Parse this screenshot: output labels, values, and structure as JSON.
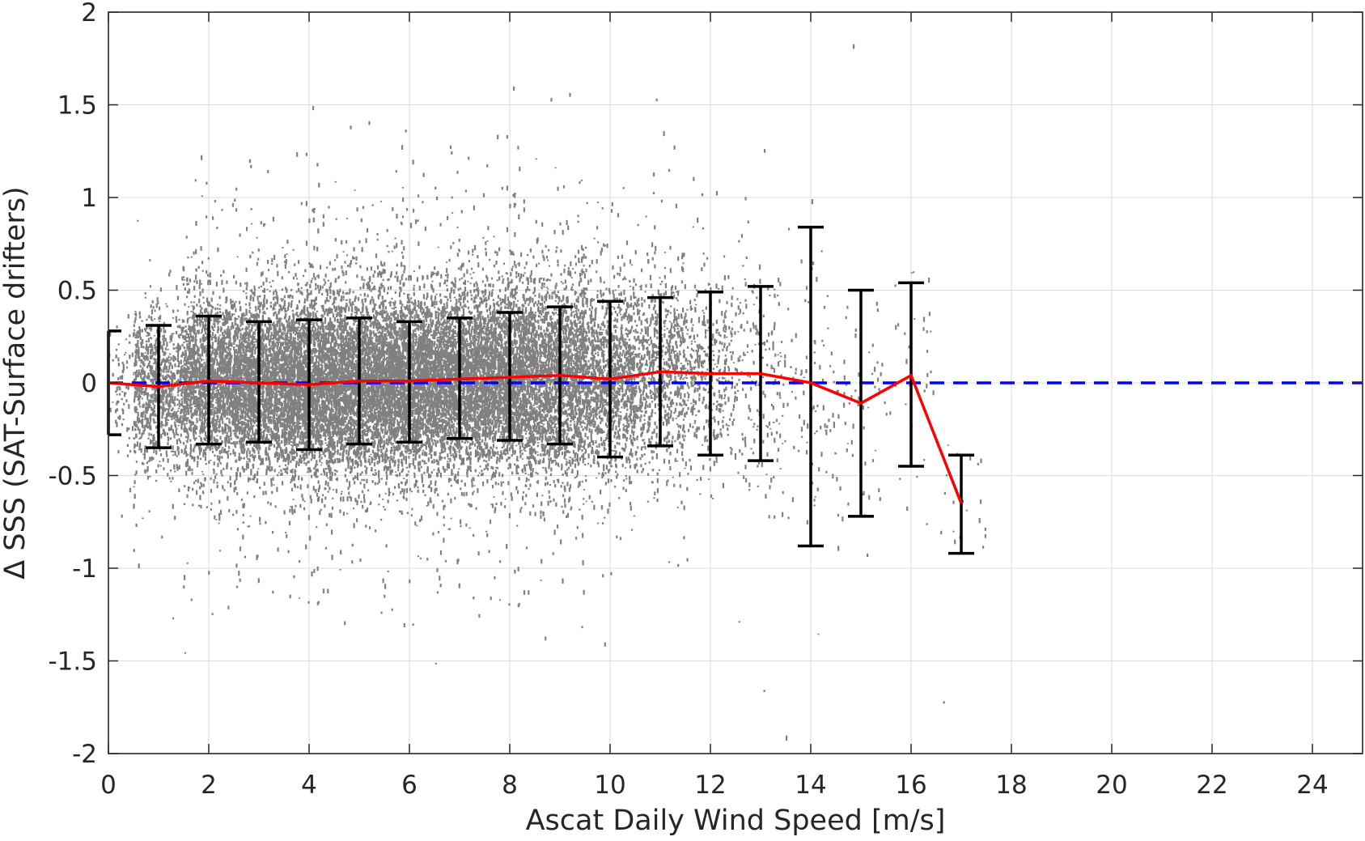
{
  "chart_data": {
    "type": "scatter",
    "title": "",
    "xlabel": "Ascat Daily Wind Speed [m/s]",
    "ylabel": "Δ SSS (SAT-Surface drifters)",
    "xlim": [
      0,
      25
    ],
    "ylim": [
      -2,
      2
    ],
    "x_ticks": [
      0,
      2,
      4,
      6,
      8,
      10,
      12,
      14,
      16,
      18,
      20,
      22,
      24
    ],
    "x_tick_labels": [
      "0",
      "2",
      "4",
      "6",
      "8",
      "10",
      "12",
      "14",
      "16",
      "18",
      "20",
      "22",
      "24"
    ],
    "y_ticks": [
      2,
      1.5,
      1,
      0.5,
      0,
      -0.5,
      -1,
      -1.5,
      -2
    ],
    "y_tick_labels": [
      "2",
      "1.5",
      "1",
      "0.5",
      "0",
      "-0.5",
      "-1",
      "-1.5",
      "-2"
    ],
    "grid": true,
    "reference_line": {
      "y": 0,
      "style": "dashed",
      "color": "#0000ff"
    },
    "scatter_color": "#808080",
    "series": [
      {
        "type": "line",
        "color": "#ff0000",
        "x": [
          0,
          1,
          2,
          3,
          4,
          5,
          6,
          7,
          8,
          9,
          10,
          11,
          12,
          13,
          14,
          15,
          16,
          17
        ],
        "y": [
          0.0,
          -0.02,
          0.01,
          0.0,
          -0.01,
          0.01,
          0.01,
          0.02,
          0.03,
          0.04,
          0.02,
          0.06,
          0.05,
          0.05,
          0.0,
          -0.11,
          0.04,
          -0.65
        ]
      },
      {
        "type": "errorbar",
        "color": "#000000",
        "x": [
          0,
          1,
          2,
          3,
          4,
          5,
          6,
          7,
          8,
          9,
          10,
          11,
          12,
          13,
          14,
          15,
          16,
          17
        ],
        "upper": [
          0.28,
          0.31,
          0.36,
          0.33,
          0.34,
          0.35,
          0.33,
          0.35,
          0.38,
          0.41,
          0.44,
          0.46,
          0.49,
          0.52,
          0.84,
          0.5,
          0.54,
          -0.39
        ],
        "lower": [
          -0.28,
          -0.35,
          -0.33,
          -0.32,
          -0.36,
          -0.33,
          -0.32,
          -0.3,
          -0.31,
          -0.33,
          -0.4,
          -0.34,
          -0.39,
          -0.42,
          -0.88,
          -0.72,
          -0.45,
          -0.92
        ]
      }
    ],
    "scatter_density": {
      "x_bins": [
        0,
        1,
        2,
        3,
        4,
        5,
        6,
        7,
        8,
        9,
        10,
        11,
        12,
        13,
        14,
        15,
        16,
        17
      ],
      "spread_sd": [
        0.16,
        0.2,
        0.22,
        0.22,
        0.23,
        0.23,
        0.23,
        0.23,
        0.24,
        0.25,
        0.25,
        0.25,
        0.26,
        0.3,
        0.4,
        0.35,
        0.3,
        0.2
      ],
      "relative_count": [
        0.05,
        0.35,
        0.7,
        0.85,
        1.0,
        1.0,
        1.0,
        0.95,
        0.9,
        0.75,
        0.5,
        0.3,
        0.15,
        0.07,
        0.03,
        0.02,
        0.01,
        0.005
      ]
    }
  }
}
